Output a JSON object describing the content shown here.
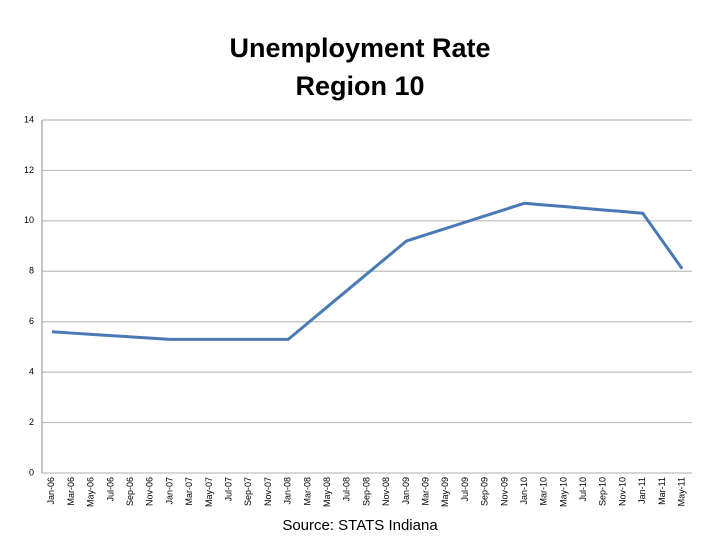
{
  "chart_data": {
    "type": "line",
    "title": "Unemployment Rate",
    "subtitle": "Region 10",
    "source": "Source:  STATS Indiana",
    "categories": [
      "Jan-06",
      "Mar-06",
      "May-06",
      "Jul-06",
      "Sep-06",
      "Nov-06",
      "Jan-07",
      "Mar-07",
      "May-07",
      "Jul-07",
      "Sep-07",
      "Nov-07",
      "Jan-08",
      "Mar-08",
      "May-08",
      "Jul-08",
      "Sep-08",
      "Nov-08",
      "Jan-09",
      "Mar-09",
      "May-09",
      "Jul-09",
      "Sep-09",
      "Nov-09",
      "Jan-10",
      "Mar-10",
      "May-10",
      "Jul-10",
      "Sep-10",
      "Nov-10",
      "Jan-11",
      "Mar-11",
      "May-11"
    ],
    "series": [
      {
        "color": "#4a7ab5",
        "values": [
          5.6,
          5.55,
          5.5,
          5.45,
          5.4,
          5.35,
          5.3,
          5.3,
          5.3,
          5.3,
          5.3,
          5.3,
          5.3,
          5.95,
          6.6,
          7.25,
          7.9,
          8.55,
          9.2,
          9.45,
          9.7,
          9.95,
          10.2,
          10.45,
          10.7,
          10.63,
          10.57,
          10.5,
          10.43,
          10.37,
          10.3,
          9.2,
          8.1
        ]
      }
    ],
    "ylim": [
      0,
      14
    ],
    "yticks": [
      0,
      2,
      4,
      6,
      8,
      10,
      12,
      14
    ],
    "grid": true
  }
}
